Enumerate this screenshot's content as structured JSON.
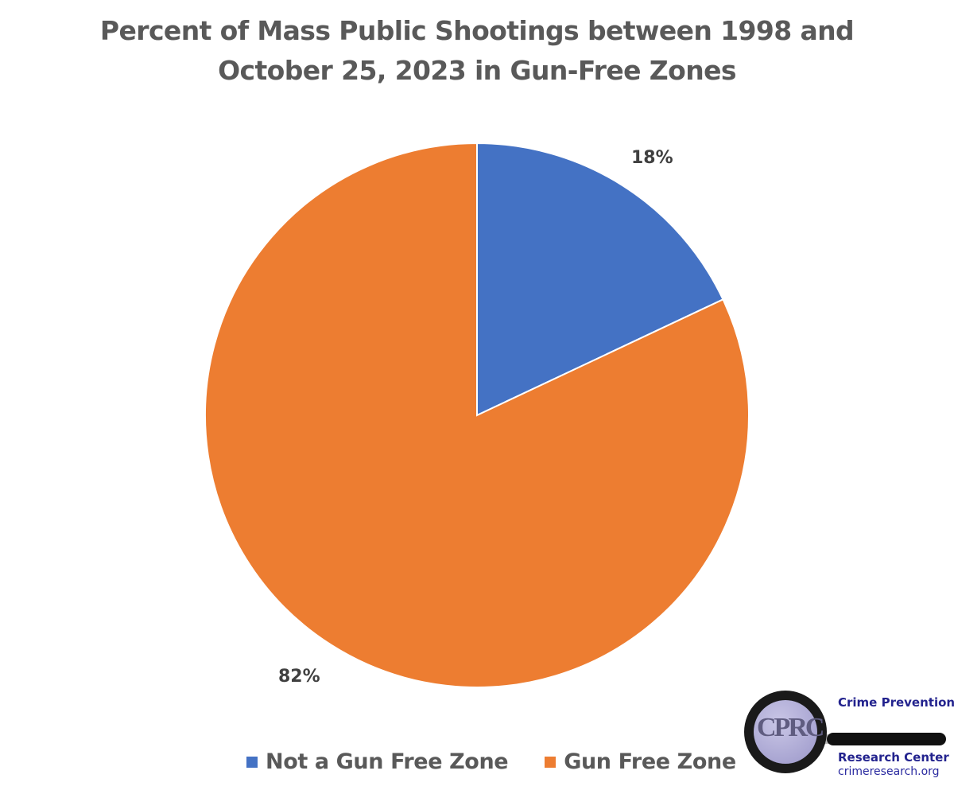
{
  "chart_data": {
    "type": "pie",
    "title": "Percent of Mass Public Shootings between 1998 and October 25, 2023 in Gun-Free Zones",
    "title_lines": [
      "Percent of Mass Public Shootings between 1998 and",
      "October 25, 2023 in Gun-Free Zones"
    ],
    "categories": [
      "Not a Gun Free Zone",
      "Gun Free Zone"
    ],
    "values": [
      18,
      82
    ],
    "labels": [
      "18%",
      "82%"
    ],
    "colors": [
      "#4472C4",
      "#ED7D31"
    ],
    "legend_position": "bottom",
    "start_angle": "12 o'clock, clockwise"
  },
  "legend": {
    "items": [
      {
        "label": "Not a Gun Free Zone",
        "color": "#4472C4"
      },
      {
        "label": "Gun Free Zone",
        "color": "#ED7D31"
      }
    ]
  },
  "logo": {
    "letters": "CPRC",
    "line1": "Crime Prevention",
    "line2": "Research Center",
    "line3": "crimeresearch.org"
  }
}
